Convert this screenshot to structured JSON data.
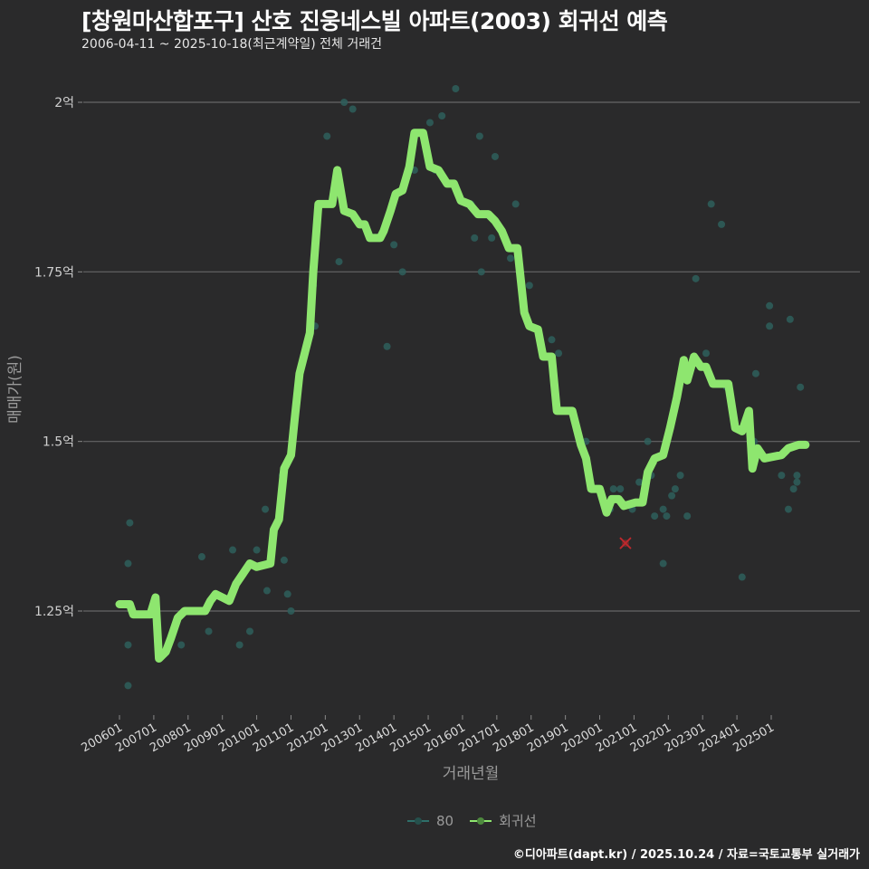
{
  "header": {
    "title": "[창원마산합포구] 산호 진웅네스빌 아파트(2003) 회귀선 예측",
    "subtitle": "2006-04-11 ~ 2025-10-18(최근계약일) 전체 거래건"
  },
  "axes": {
    "y_title": "매매가(원)",
    "x_title": "거래년월",
    "y_ticks": [
      {
        "label": "2억",
        "value": 2.0
      },
      {
        "label": "1.75억",
        "value": 1.75
      },
      {
        "label": "1.5억",
        "value": 1.5
      },
      {
        "label": "1.25억",
        "value": 1.25
      }
    ],
    "x_ticks": [
      "200601",
      "200701",
      "200801",
      "200901",
      "201001",
      "201101",
      "201201",
      "201301",
      "201401",
      "201501",
      "201601",
      "201701",
      "201801",
      "201901",
      "202001",
      "202101",
      "202201",
      "202301",
      "202401",
      "202501"
    ]
  },
  "legend": {
    "items": [
      {
        "label": "80",
        "color": "#2e6f6a"
      },
      {
        "label": "회귀선",
        "color": "#8ee66f"
      }
    ]
  },
  "footer": {
    "credit": "©디아파트(dapt.kr) / 2025.10.24 / 자료=국토교통부 실거래가"
  },
  "colors": {
    "background": "#2a2a2b",
    "grid": "#666666",
    "regression": "#8ee66f",
    "points": "#2e5f5c",
    "highlight": "#c0282d"
  },
  "chart_data": {
    "type": "line+scatter",
    "title": "[창원마산합포구] 산호 진웅네스빌 아파트(2003) 회귀선 예측",
    "subtitle": "2006-04-11 ~ 2025-10-18(최근계약일) 전체 거래건",
    "xlabel": "거래년월",
    "ylabel": "매매가(원)",
    "ylim_eok": [
      1.1,
      2.03
    ],
    "legend_position": "bottom",
    "grid": true,
    "series": [
      {
        "name": "회귀선",
        "type": "line",
        "unit": "억원",
        "points": [
          [
            2006.0,
            1.26
          ],
          [
            2006.3,
            1.26
          ],
          [
            2006.4,
            1.245
          ],
          [
            2006.9,
            1.245
          ],
          [
            2007.05,
            1.27
          ],
          [
            2007.15,
            1.18
          ],
          [
            2007.35,
            1.19
          ],
          [
            2007.5,
            1.21
          ],
          [
            2007.7,
            1.24
          ],
          [
            2007.9,
            1.25
          ],
          [
            2008.5,
            1.25
          ],
          [
            2008.65,
            1.265
          ],
          [
            2008.8,
            1.275
          ],
          [
            2009.0,
            1.27
          ],
          [
            2009.2,
            1.265
          ],
          [
            2009.4,
            1.29
          ],
          [
            2009.6,
            1.305
          ],
          [
            2009.8,
            1.32
          ],
          [
            2010.0,
            1.315
          ],
          [
            2010.4,
            1.32
          ],
          [
            2010.5,
            1.37
          ],
          [
            2010.65,
            1.385
          ],
          [
            2010.8,
            1.46
          ],
          [
            2011.0,
            1.48
          ],
          [
            2011.1,
            1.53
          ],
          [
            2011.25,
            1.6
          ],
          [
            2011.4,
            1.63
          ],
          [
            2011.55,
            1.66
          ],
          [
            2011.65,
            1.75
          ],
          [
            2011.8,
            1.85
          ],
          [
            2012.2,
            1.85
          ],
          [
            2012.35,
            1.9
          ],
          [
            2012.55,
            1.84
          ],
          [
            2012.8,
            1.835
          ],
          [
            2013.0,
            1.82
          ],
          [
            2013.15,
            1.82
          ],
          [
            2013.3,
            1.8
          ],
          [
            2013.6,
            1.8
          ],
          [
            2013.7,
            1.81
          ],
          [
            2013.9,
            1.84
          ],
          [
            2014.05,
            1.865
          ],
          [
            2014.25,
            1.87
          ],
          [
            2014.45,
            1.905
          ],
          [
            2014.6,
            1.955
          ],
          [
            2014.85,
            1.955
          ],
          [
            2015.05,
            1.905
          ],
          [
            2015.3,
            1.9
          ],
          [
            2015.55,
            1.88
          ],
          [
            2015.75,
            1.88
          ],
          [
            2015.95,
            1.855
          ],
          [
            2016.2,
            1.85
          ],
          [
            2016.45,
            1.835
          ],
          [
            2016.75,
            1.835
          ],
          [
            2016.95,
            1.825
          ],
          [
            2017.15,
            1.81
          ],
          [
            2017.35,
            1.785
          ],
          [
            2017.6,
            1.785
          ],
          [
            2017.8,
            1.69
          ],
          [
            2017.95,
            1.67
          ],
          [
            2018.2,
            1.665
          ],
          [
            2018.35,
            1.625
          ],
          [
            2018.6,
            1.625
          ],
          [
            2018.75,
            1.545
          ],
          [
            2019.2,
            1.545
          ],
          [
            2019.45,
            1.495
          ],
          [
            2019.6,
            1.475
          ],
          [
            2019.75,
            1.43
          ],
          [
            2020.0,
            1.43
          ],
          [
            2020.2,
            1.395
          ],
          [
            2020.35,
            1.415
          ],
          [
            2020.55,
            1.415
          ],
          [
            2020.7,
            1.405
          ],
          [
            2021.05,
            1.41
          ],
          [
            2021.25,
            1.41
          ],
          [
            2021.4,
            1.455
          ],
          [
            2021.6,
            1.475
          ],
          [
            2021.85,
            1.48
          ],
          [
            2022.05,
            1.52
          ],
          [
            2022.25,
            1.565
          ],
          [
            2022.45,
            1.62
          ],
          [
            2022.55,
            1.59
          ],
          [
            2022.75,
            1.625
          ],
          [
            2022.95,
            1.61
          ],
          [
            2023.1,
            1.61
          ],
          [
            2023.3,
            1.585
          ],
          [
            2023.75,
            1.585
          ],
          [
            2023.95,
            1.52
          ],
          [
            2024.15,
            1.515
          ],
          [
            2024.35,
            1.545
          ],
          [
            2024.45,
            1.46
          ],
          [
            2024.6,
            1.49
          ],
          [
            2024.8,
            1.475
          ],
          [
            2025.3,
            1.48
          ],
          [
            2025.5,
            1.49
          ],
          [
            2025.8,
            1.495
          ],
          [
            2026.0,
            1.495
          ]
        ]
      },
      {
        "name": "80",
        "type": "scatter",
        "unit": "억원",
        "points": [
          [
            2006.3,
            1.38
          ],
          [
            2006.25,
            1.32
          ],
          [
            2006.25,
            1.2
          ],
          [
            2006.25,
            1.14
          ],
          [
            2007.8,
            1.2
          ],
          [
            2008.4,
            1.33
          ],
          [
            2008.6,
            1.22
          ],
          [
            2009.3,
            1.34
          ],
          [
            2009.5,
            1.2
          ],
          [
            2009.8,
            1.22
          ],
          [
            2010.0,
            1.34
          ],
          [
            2010.25,
            1.4
          ],
          [
            2010.3,
            1.28
          ],
          [
            2010.75,
            1.45
          ],
          [
            2010.9,
            1.275
          ],
          [
            2011.0,
            1.25
          ],
          [
            2010.8,
            1.325
          ],
          [
            2011.65,
            1.73
          ],
          [
            2011.7,
            1.67
          ],
          [
            2012.05,
            1.95
          ],
          [
            2012.2,
            1.85
          ],
          [
            2012.4,
            1.765
          ],
          [
            2012.55,
            2.0
          ],
          [
            2012.8,
            1.99
          ],
          [
            2013.8,
            1.64
          ],
          [
            2014.0,
            1.79
          ],
          [
            2014.25,
            1.75
          ],
          [
            2014.6,
            1.9
          ],
          [
            2015.05,
            1.97
          ],
          [
            2015.2,
            1.9
          ],
          [
            2015.4,
            1.98
          ],
          [
            2015.8,
            2.02
          ],
          [
            2016.25,
            1.85
          ],
          [
            2016.35,
            1.8
          ],
          [
            2016.5,
            1.95
          ],
          [
            2016.55,
            1.75
          ],
          [
            2016.85,
            1.8
          ],
          [
            2016.95,
            1.92
          ],
          [
            2017.4,
            1.77
          ],
          [
            2017.55,
            1.85
          ],
          [
            2017.95,
            1.73
          ],
          [
            2018.6,
            1.65
          ],
          [
            2018.8,
            1.63
          ],
          [
            2019.6,
            1.5
          ],
          [
            2020.4,
            1.43
          ],
          [
            2020.6,
            1.43
          ],
          [
            2021.4,
            1.5
          ],
          [
            2021.15,
            1.44
          ],
          [
            2021.5,
            1.45
          ],
          [
            2020.3,
            1.4
          ],
          [
            2020.95,
            1.4
          ],
          [
            2021.6,
            1.39
          ],
          [
            2021.85,
            1.4
          ],
          [
            2021.95,
            1.39
          ],
          [
            2022.1,
            1.42
          ],
          [
            2022.2,
            1.43
          ],
          [
            2022.35,
            1.45
          ],
          [
            2022.55,
            1.39
          ],
          [
            2021.85,
            1.32
          ],
          [
            2022.8,
            1.74
          ],
          [
            2023.1,
            1.63
          ],
          [
            2023.25,
            1.85
          ],
          [
            2023.55,
            1.82
          ],
          [
            2023.7,
            1.58
          ],
          [
            2024.15,
            1.3
          ],
          [
            2024.5,
            1.5
          ],
          [
            2024.7,
            1.48
          ],
          [
            2024.95,
            1.7
          ],
          [
            2024.95,
            1.67
          ],
          [
            2024.55,
            1.6
          ],
          [
            2025.3,
            1.45
          ],
          [
            2025.5,
            1.4
          ],
          [
            2025.65,
            1.43
          ],
          [
            2025.75,
            1.44
          ],
          [
            2025.75,
            1.45
          ],
          [
            2025.55,
            1.68
          ],
          [
            2025.85,
            1.58
          ]
        ]
      },
      {
        "name": "highlight",
        "type": "marker-x",
        "points": [
          [
            2020.75,
            1.35
          ]
        ]
      }
    ]
  }
}
